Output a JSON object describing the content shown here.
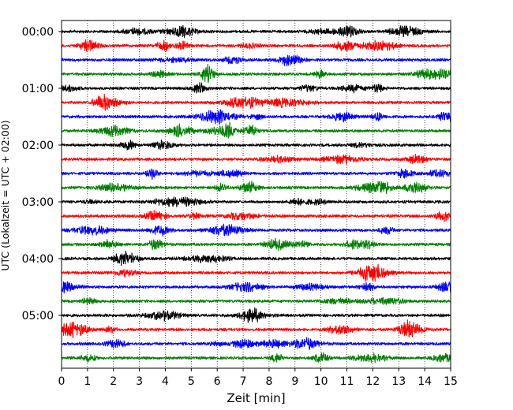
{
  "chart_data": {
    "type": "line",
    "title": "",
    "xlabel": "Zeit  [min]",
    "ylabel": "UTC (Lokalzeit = UTC + 02:00)",
    "x_ticks": [
      0,
      1,
      2,
      3,
      4,
      5,
      6,
      7,
      8,
      9,
      10,
      11,
      12,
      13,
      14,
      15
    ],
    "xlim": [
      0,
      15
    ],
    "y_tick_labels": [
      "00:00",
      "01:00",
      "02:00",
      "03:00",
      "04:00",
      "05:00"
    ],
    "trace_interval_min": 15,
    "trace_count": 24,
    "trace_colors": [
      "#000000",
      "#ff0000",
      "#0000ff",
      "#008000"
    ],
    "grid": "vertical dotted",
    "legend": "none"
  }
}
